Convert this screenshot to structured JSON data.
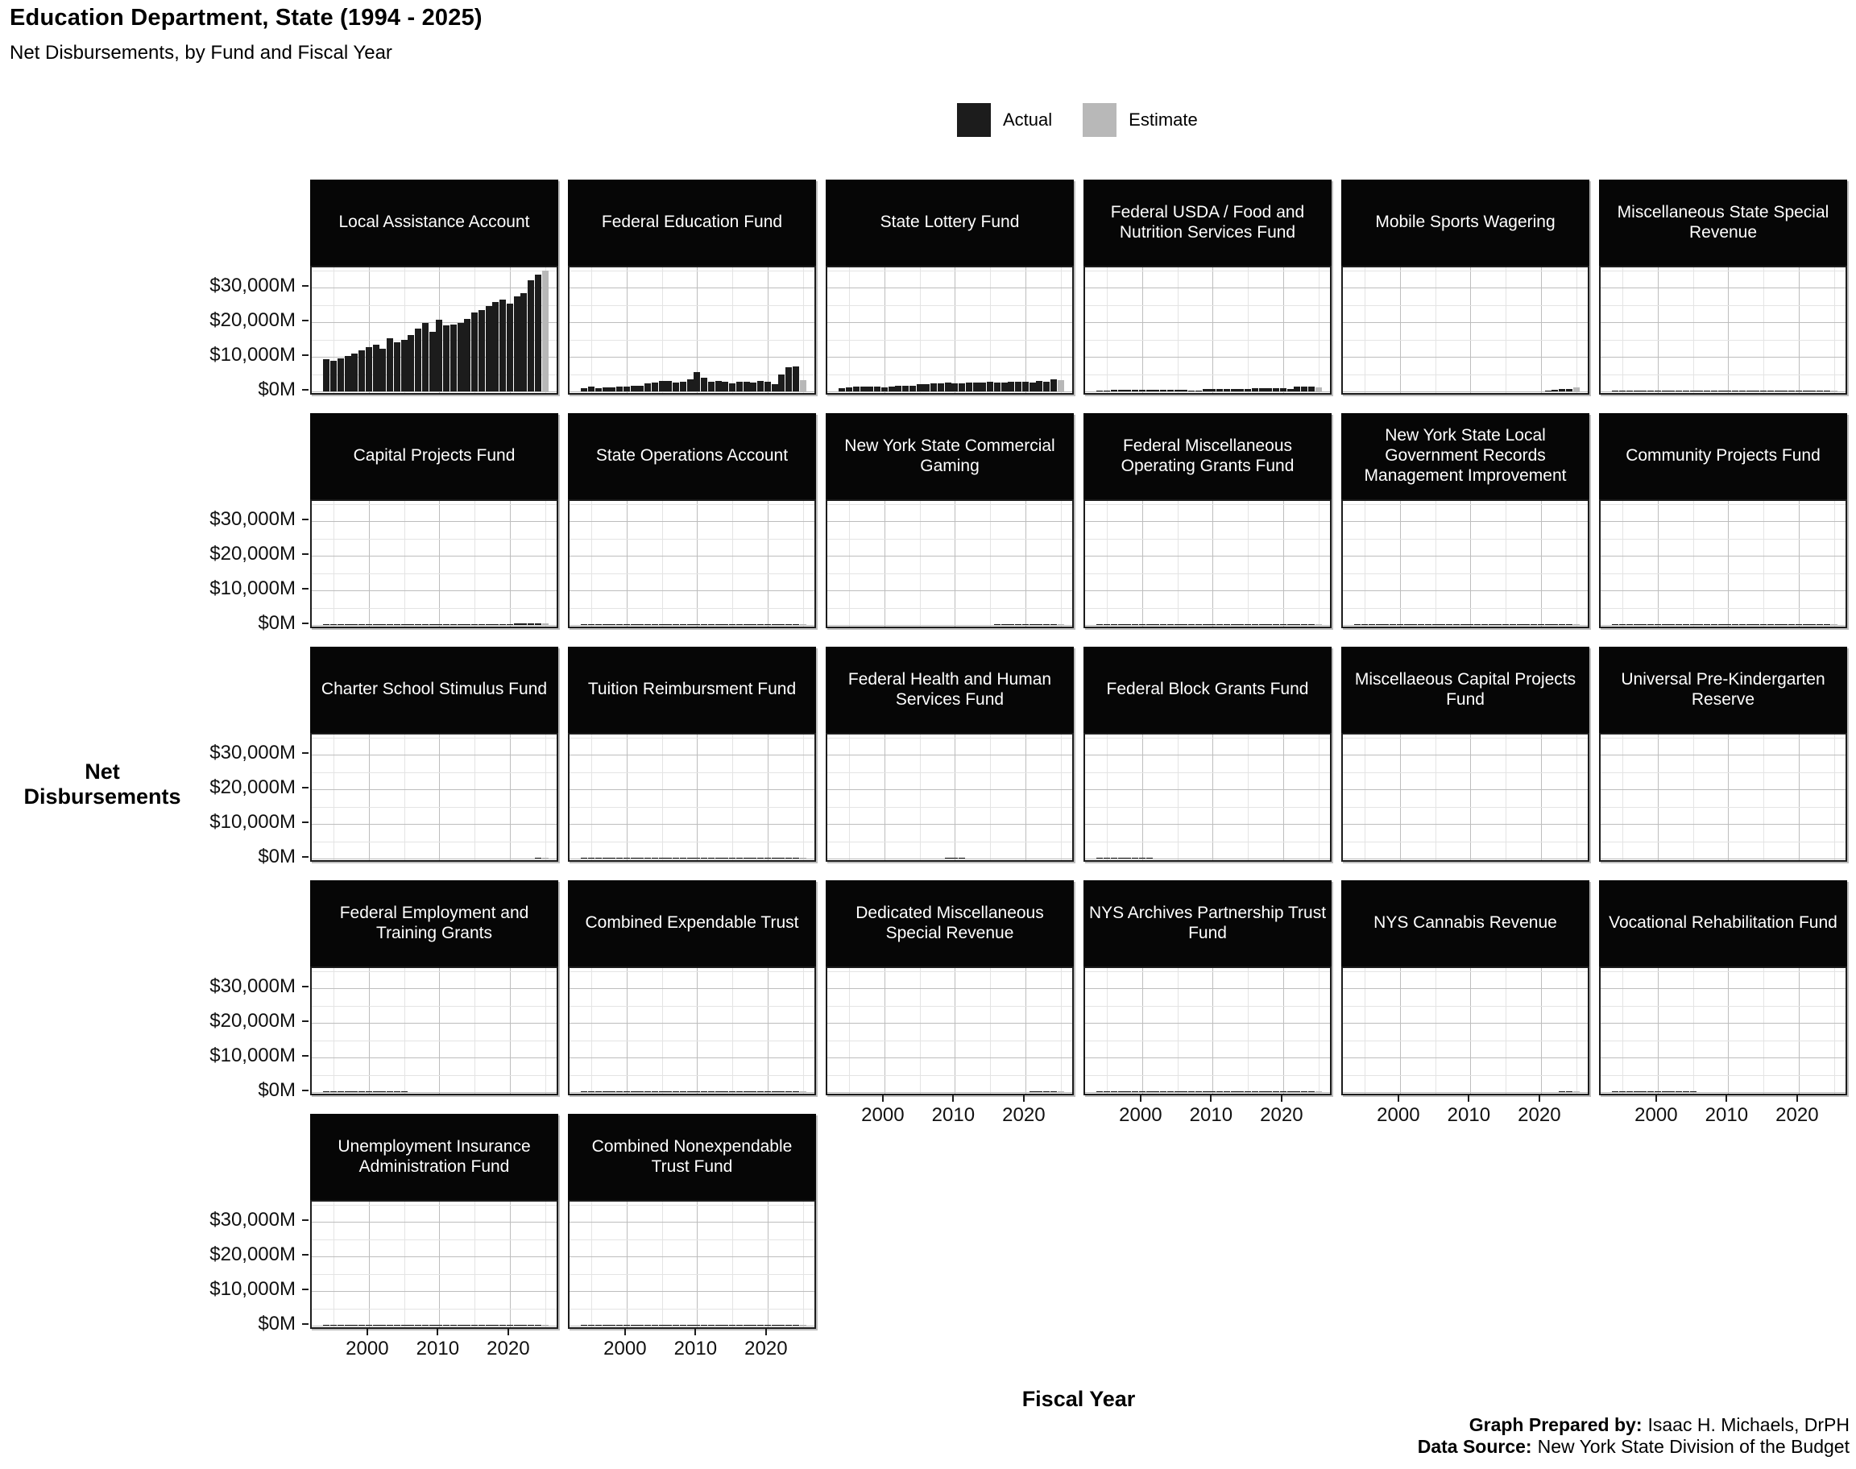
{
  "header": {
    "title": "Education Department, State (1994 - 2025)",
    "subtitle": "Net Disbursements, by Fund and Fiscal Year"
  },
  "legend": {
    "actual_label": "Actual",
    "estimate_label": "Estimate",
    "actual_color": "#1c1c1c",
    "estimate_color": "#b8b8b8"
  },
  "axes": {
    "y_title": "Net Disbursements",
    "x_title": "Fiscal Year",
    "y_ticks": [
      {
        "label": "$0M",
        "value": 0
      },
      {
        "label": "$10,000M",
        "value": 10000
      },
      {
        "label": "$20,000M",
        "value": 20000
      },
      {
        "label": "$30,000M",
        "value": 30000
      }
    ],
    "x_ticks": [
      {
        "label": "2000",
        "value": 2000
      },
      {
        "label": "2010",
        "value": 2010
      },
      {
        "label": "2020",
        "value": 2020
      }
    ]
  },
  "footer": {
    "prepared_label": "Graph Prepared by:",
    "prepared_value": "Isaac H. Michaels, DrPH",
    "source_label": "Data Source:",
    "source_value": "New York State Division of the Budget"
  },
  "chart_data": {
    "type": "bar",
    "unit": "$M",
    "x": [
      1994,
      1995,
      1996,
      1997,
      1998,
      1999,
      2000,
      2001,
      2002,
      2003,
      2004,
      2005,
      2006,
      2007,
      2008,
      2009,
      2010,
      2011,
      2012,
      2013,
      2014,
      2015,
      2016,
      2017,
      2018,
      2019,
      2020,
      2021,
      2022,
      2023,
      2024,
      2025
    ],
    "estimate_year": 2025,
    "ylim": [
      0,
      35800
    ],
    "y_minor_gridlines": [
      5000,
      15000,
      25000,
      35000
    ],
    "y_major_gridlines": [
      0,
      10000,
      20000,
      30000
    ],
    "x_minor_gridlines": [
      1995,
      2005,
      2015,
      2025
    ],
    "x_major_gridlines": [
      2000,
      2010,
      2020
    ],
    "facets": [
      {
        "name": "Local Assistance Account",
        "values": [
          9400,
          8800,
          9600,
          10200,
          11000,
          11800,
          12800,
          13600,
          12400,
          15400,
          14200,
          14800,
          16200,
          18200,
          19800,
          17200,
          20800,
          19000,
          19400,
          19800,
          21000,
          22800,
          23400,
          24600,
          25800,
          26400,
          25400,
          27400,
          28400,
          32000,
          33800,
          34800
        ]
      },
      {
        "name": "Federal Education Fund",
        "values": [
          900,
          1300,
          1000,
          1200,
          1200,
          1300,
          1300,
          1600,
          1600,
          2400,
          2600,
          3100,
          3100,
          2600,
          2800,
          3500,
          5500,
          4000,
          2800,
          3100,
          2800,
          2400,
          2900,
          2900,
          2500,
          3100,
          2800,
          2200,
          5000,
          7000,
          7300,
          3200
        ]
      },
      {
        "name": "State Lottery Fund",
        "values": [
          1000,
          1200,
          1400,
          1400,
          1300,
          1300,
          1200,
          1400,
          1700,
          1700,
          1600,
          2000,
          2200,
          2300,
          2300,
          2500,
          2400,
          2300,
          2500,
          2600,
          2600,
          2700,
          2500,
          2500,
          2700,
          2900,
          2800,
          2500,
          3100,
          2800,
          3400,
          3300
        ]
      },
      {
        "name": "Federal USDA / Food and Nutrition Services Fund",
        "values": [
          150,
          180,
          350,
          380,
          380,
          400,
          400,
          420,
          430,
          450,
          450,
          470,
          480,
          300,
          320,
          650,
          680,
          700,
          720,
          740,
          750,
          780,
          900,
          950,
          950,
          980,
          900,
          800,
          1350,
          1500,
          1450,
          1100
        ]
      },
      {
        "name": "Mobile Sports Wagering",
        "values": [
          0,
          0,
          0,
          0,
          0,
          0,
          0,
          0,
          0,
          0,
          0,
          0,
          0,
          0,
          0,
          0,
          0,
          0,
          0,
          0,
          0,
          0,
          0,
          0,
          0,
          0,
          0,
          80,
          350,
          600,
          650,
          1100
        ]
      },
      {
        "name": "Miscellaneous State Special Revenue",
        "values": [
          120,
          120,
          130,
          120,
          110,
          120,
          130,
          120,
          120,
          130,
          120,
          120,
          110,
          120,
          130,
          120,
          120,
          130,
          140,
          130,
          120,
          130,
          120,
          130,
          140,
          130,
          120,
          130,
          140,
          150,
          140,
          130
        ]
      },
      {
        "name": "Capital Projects Fund",
        "values": [
          100,
          250,
          220,
          120,
          80,
          60,
          60,
          60,
          60,
          80,
          80,
          80,
          80,
          80,
          80,
          80,
          60,
          60,
          60,
          60,
          60,
          80,
          100,
          150,
          200,
          250,
          300,
          350,
          400,
          450,
          500,
          550
        ]
      },
      {
        "name": "State Operations Account",
        "values": [
          150,
          150,
          150,
          150,
          150,
          140,
          140,
          150,
          150,
          150,
          160,
          150,
          150,
          140,
          150,
          150,
          150,
          150,
          140,
          150,
          150,
          160,
          150,
          150,
          150,
          150,
          150,
          160,
          160,
          170,
          170,
          160
        ]
      },
      {
        "name": "New York State Commercial Gaming",
        "values": [
          0,
          0,
          0,
          0,
          0,
          0,
          0,
          0,
          0,
          0,
          0,
          0,
          0,
          0,
          0,
          0,
          0,
          0,
          0,
          0,
          0,
          0,
          150,
          200,
          200,
          200,
          180,
          180,
          200,
          200,
          220,
          220
        ]
      },
      {
        "name": "Federal Miscellaneous Operating Grants Fund",
        "values": [
          100,
          100,
          100,
          100,
          100,
          100,
          100,
          100,
          100,
          100,
          100,
          100,
          100,
          100,
          100,
          100,
          100,
          100,
          100,
          100,
          100,
          100,
          100,
          100,
          100,
          100,
          100,
          100,
          100,
          100,
          100,
          100
        ]
      },
      {
        "name": "New York State Local Government Records Management Improvement",
        "values": [
          80,
          80,
          80,
          80,
          80,
          80,
          80,
          80,
          80,
          80,
          80,
          80,
          80,
          80,
          80,
          80,
          80,
          80,
          80,
          80,
          80,
          80,
          80,
          80,
          80,
          80,
          80,
          80,
          80,
          80,
          80,
          80
        ]
      },
      {
        "name": "Community Projects Fund",
        "values": [
          100,
          100,
          100,
          100,
          100,
          100,
          100,
          100,
          100,
          100,
          100,
          100,
          100,
          100,
          100,
          100,
          100,
          100,
          100,
          100,
          100,
          30,
          30,
          30,
          30,
          30,
          30,
          30,
          30,
          30,
          30,
          30
        ]
      },
      {
        "name": "Charter School Stimulus Fund",
        "values": [
          0,
          0,
          0,
          0,
          0,
          0,
          0,
          0,
          0,
          0,
          0,
          0,
          0,
          0,
          0,
          0,
          0,
          0,
          0,
          0,
          0,
          0,
          0,
          0,
          0,
          0,
          0,
          0,
          0,
          0,
          40,
          60
        ]
      },
      {
        "name": "Tuition Reimbursment Fund",
        "values": [
          30,
          30,
          30,
          30,
          30,
          30,
          30,
          30,
          30,
          30,
          30,
          30,
          30,
          30,
          30,
          30,
          30,
          30,
          30,
          30,
          30,
          30,
          30,
          30,
          30,
          30,
          30,
          30,
          30,
          30,
          30,
          30
        ]
      },
      {
        "name": "Federal Health and Human Services Fund",
        "values": [
          0,
          0,
          0,
          0,
          0,
          0,
          0,
          0,
          0,
          0,
          0,
          0,
          0,
          0,
          0,
          100,
          150,
          120,
          0,
          0,
          0,
          0,
          0,
          0,
          0,
          0,
          0,
          0,
          0,
          0,
          0,
          0
        ]
      },
      {
        "name": "Federal Block Grants Fund",
        "values": [
          40,
          40,
          40,
          30,
          30,
          30,
          20,
          20,
          0,
          0,
          0,
          0,
          0,
          0,
          0,
          0,
          0,
          0,
          0,
          0,
          0,
          0,
          0,
          0,
          0,
          0,
          0,
          0,
          0,
          0,
          0,
          0
        ]
      },
      {
        "name": "Miscellaeous Capital Projects Fund",
        "values": [
          0,
          0,
          0,
          0,
          0,
          0,
          0,
          0,
          0,
          0,
          0,
          0,
          0,
          0,
          0,
          0,
          0,
          0,
          0,
          0,
          0,
          0,
          0,
          0,
          0,
          0,
          0,
          0,
          0,
          0,
          0,
          0
        ]
      },
      {
        "name": "Universal Pre-Kindergarten Reserve",
        "values": [
          0,
          0,
          0,
          0,
          0,
          0,
          0,
          0,
          0,
          0,
          0,
          0,
          0,
          0,
          0,
          0,
          0,
          0,
          0,
          0,
          0,
          0,
          0,
          0,
          0,
          0,
          0,
          0,
          0,
          0,
          0,
          0
        ]
      },
      {
        "name": "Federal Employment and Training Grants",
        "values": [
          60,
          60,
          60,
          60,
          60,
          50,
          50,
          50,
          40,
          40,
          30,
          30,
          0,
          0,
          0,
          0,
          0,
          0,
          0,
          0,
          0,
          0,
          0,
          0,
          0,
          0,
          0,
          0,
          0,
          0,
          0,
          0
        ]
      },
      {
        "name": "Combined Expendable Trust",
        "values": [
          30,
          30,
          30,
          30,
          30,
          30,
          30,
          30,
          30,
          30,
          30,
          30,
          30,
          30,
          30,
          30,
          30,
          30,
          30,
          30,
          30,
          30,
          30,
          30,
          30,
          30,
          30,
          30,
          30,
          30,
          30,
          30
        ]
      },
      {
        "name": "Dedicated Miscellaneous Special Revenue",
        "values": [
          0,
          0,
          0,
          0,
          0,
          0,
          0,
          0,
          0,
          0,
          0,
          0,
          0,
          0,
          0,
          0,
          0,
          0,
          0,
          0,
          0,
          0,
          0,
          0,
          0,
          0,
          0,
          20,
          30,
          30,
          30,
          30
        ]
      },
      {
        "name": "NYS Archives Partnership Trust Fund",
        "values": [
          20,
          20,
          20,
          20,
          20,
          20,
          20,
          20,
          20,
          20,
          20,
          20,
          20,
          20,
          20,
          20,
          20,
          20,
          20,
          20,
          20,
          20,
          20,
          20,
          20,
          20,
          20,
          20,
          20,
          20,
          20,
          20
        ]
      },
      {
        "name": "NYS Cannabis Revenue",
        "values": [
          0,
          0,
          0,
          0,
          0,
          0,
          0,
          0,
          0,
          0,
          0,
          0,
          0,
          0,
          0,
          0,
          0,
          0,
          0,
          0,
          0,
          0,
          0,
          0,
          0,
          0,
          0,
          0,
          0,
          30,
          40,
          50
        ]
      },
      {
        "name": "Vocational Rehabilitation Fund",
        "values": [
          50,
          50,
          50,
          40,
          40,
          40,
          30,
          30,
          30,
          20,
          20,
          20,
          0,
          0,
          0,
          0,
          0,
          0,
          0,
          0,
          0,
          0,
          0,
          0,
          0,
          0,
          0,
          0,
          0,
          0,
          0,
          0
        ]
      },
      {
        "name": "Unemployment Insurance Administration Fund",
        "values": [
          20,
          20,
          20,
          20,
          20,
          20,
          20,
          20,
          20,
          20,
          20,
          20,
          20,
          20,
          20,
          20,
          20,
          20,
          20,
          20,
          20,
          20,
          20,
          20,
          20,
          20,
          20,
          20,
          20,
          20,
          20,
          20
        ]
      },
      {
        "name": "Combined Nonexpendable Trust Fund",
        "values": [
          10,
          10,
          10,
          10,
          10,
          10,
          10,
          10,
          10,
          10,
          10,
          10,
          10,
          10,
          10,
          10,
          10,
          10,
          10,
          10,
          10,
          10,
          10,
          10,
          10,
          10,
          10,
          10,
          10,
          10,
          10,
          10
        ]
      }
    ]
  }
}
